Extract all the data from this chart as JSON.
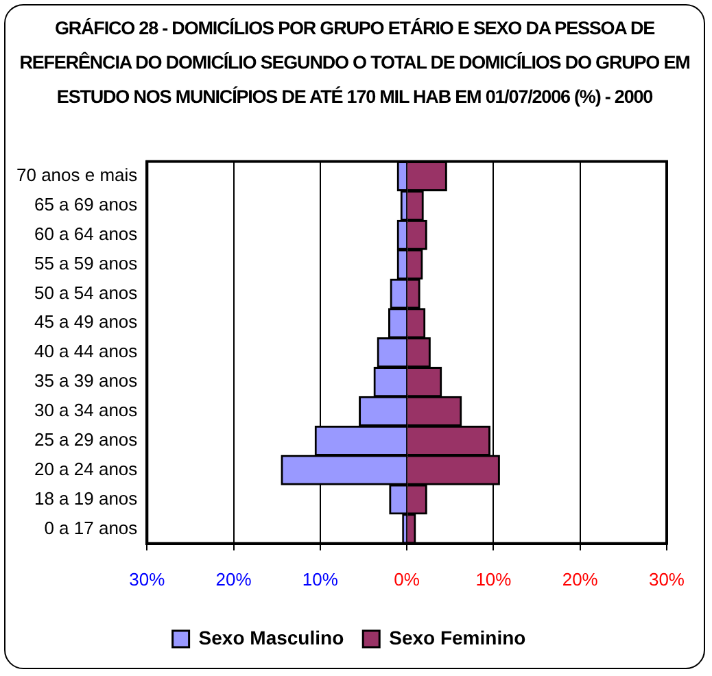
{
  "chart_data": {
    "type": "bar",
    "orientation": "horizontal",
    "stacked": true,
    "title": "GRÁFICO 28 - DOMICÍLIOS POR GRUPO ETÁRIO E SEXO DA PESSOA DE REFERÊNCIA DO DOMICÍLIO SEGUNDO O TOTAL DE DOMICÍLIOS DO GRUPO EM ESTUDO NOS MUNICÍPIOS DE ATÉ 170 MIL HAB EM 01/07/2006 (%) -  2000",
    "categories": [
      "70 anos e mais",
      "65 a 69 anos",
      "60 a 64 anos",
      "55 a 59 anos",
      "50 a 54 anos",
      "45 a 49 anos",
      "40 a 44 anos",
      "35 a 39 anos",
      "30 a 34 anos",
      "25 a 29 anos",
      "20 a 24 anos",
      "18 a 19 anos",
      "0 a 17 anos"
    ],
    "series": [
      {
        "name": "Sexo Masculino",
        "color": "#9999ff",
        "values": [
          -1.1,
          -0.7,
          -1.1,
          -1.1,
          -1.9,
          -2.1,
          -3.4,
          -3.8,
          -5.5,
          -10.6,
          -14.5,
          -2.0,
          -0.5
        ]
      },
      {
        "name": "Sexo Feminino",
        "color": "#993366",
        "values": [
          4.6,
          1.9,
          2.3,
          1.8,
          1.5,
          2.1,
          2.7,
          4.0,
          6.3,
          9.6,
          10.7,
          2.3,
          1.0
        ]
      }
    ],
    "xlim": [
      -30,
      30
    ],
    "xticks": [
      {
        "value": -30,
        "label": "30%"
      },
      {
        "value": -20,
        "label": "20%"
      },
      {
        "value": -10,
        "label": "10%"
      },
      {
        "value": 0,
        "label": "0%"
      },
      {
        "value": 10,
        "label": "10%"
      },
      {
        "value": 20,
        "label": "20%"
      },
      {
        "value": 30,
        "label": "30%"
      }
    ],
    "grid": "x",
    "legend": "bottom"
  }
}
